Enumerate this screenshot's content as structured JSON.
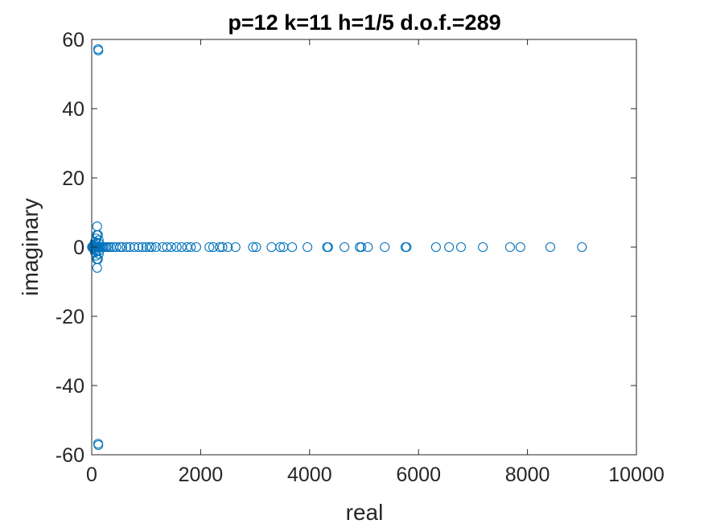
{
  "chart_data": {
    "type": "scatter",
    "title": "p=12 k=11 h=1/5 d.o.f.=289",
    "xlabel": "real",
    "ylabel": "imaginary",
    "xlim": [
      0,
      10000
    ],
    "ylim": [
      -60,
      60
    ],
    "xticks": [
      0,
      2000,
      4000,
      6000,
      8000,
      10000
    ],
    "yticks": [
      -60,
      -40,
      -20,
      0,
      20,
      40,
      60
    ],
    "xtick_labels": [
      "0",
      "2000",
      "4000",
      "6000",
      "8000",
      "10000"
    ],
    "ytick_labels": [
      "-60",
      "-40",
      "-20",
      "0",
      "20",
      "40",
      "60"
    ],
    "grid": false,
    "box": true,
    "marker": "circle-open",
    "series": [
      {
        "color": "#0072BD",
        "points": [
          [
            118,
            57.2
          ],
          [
            122,
            56.8
          ],
          [
            118,
            -56.8
          ],
          [
            122,
            -57.2
          ],
          [
            100,
            6
          ],
          [
            100,
            -6
          ],
          [
            95,
            3.5
          ],
          [
            95,
            -3.5
          ],
          [
            115,
            3.5
          ],
          [
            115,
            -3.5
          ],
          [
            80,
            2.5
          ],
          [
            80,
            -2.5
          ],
          [
            60,
            1.5
          ],
          [
            60,
            -1.5
          ],
          [
            130,
            2
          ],
          [
            130,
            -2
          ],
          [
            30,
            0.5
          ],
          [
            30,
            -0.5
          ],
          [
            50,
            0.8
          ],
          [
            50,
            -0.8
          ],
          [
            140,
            1
          ],
          [
            140,
            -1
          ],
          [
            90,
            1.2
          ],
          [
            90,
            -1.2
          ],
          [
            5,
            0
          ],
          [
            12,
            0
          ],
          [
            20,
            0
          ],
          [
            30,
            0
          ],
          [
            40,
            0
          ],
          [
            55,
            0
          ],
          [
            70,
            0
          ],
          [
            85,
            0
          ],
          [
            100,
            0
          ],
          [
            120,
            0
          ],
          [
            140,
            0
          ],
          [
            160,
            0
          ],
          [
            185,
            0
          ],
          [
            210,
            0
          ],
          [
            240,
            0
          ],
          [
            270,
            0
          ],
          [
            310,
            0
          ],
          [
            350,
            0
          ],
          [
            400,
            0
          ],
          [
            450,
            0
          ],
          [
            520,
            0
          ],
          [
            560,
            0
          ],
          [
            640,
            0
          ],
          [
            700,
            0
          ],
          [
            780,
            0
          ],
          [
            860,
            0
          ],
          [
            930,
            0
          ],
          [
            1000,
            0
          ],
          [
            1060,
            0
          ],
          [
            1100,
            0
          ],
          [
            1180,
            0
          ],
          [
            1300,
            0
          ],
          [
            1380,
            0
          ],
          [
            1460,
            0
          ],
          [
            1560,
            0
          ],
          [
            1650,
            0
          ],
          [
            1750,
            0
          ],
          [
            1820,
            0
          ],
          [
            1920,
            0
          ],
          [
            2160,
            0
          ],
          [
            2230,
            0
          ],
          [
            2350,
            0
          ],
          [
            2400,
            0
          ],
          [
            2500,
            0
          ],
          [
            2640,
            0
          ],
          [
            2960,
            0
          ],
          [
            3020,
            0
          ],
          [
            3300,
            0
          ],
          [
            3460,
            0
          ],
          [
            3520,
            0
          ],
          [
            3680,
            0
          ],
          [
            3960,
            0
          ],
          [
            4320,
            0
          ],
          [
            4340,
            0
          ],
          [
            4640,
            0
          ],
          [
            4920,
            0
          ],
          [
            4950,
            0
          ],
          [
            5070,
            0
          ],
          [
            5380,
            0
          ],
          [
            5760,
            0
          ],
          [
            5780,
            0
          ],
          [
            6320,
            0
          ],
          [
            6560,
            0
          ],
          [
            6780,
            0
          ],
          [
            7180,
            0
          ],
          [
            7680,
            0
          ],
          [
            7870,
            0
          ],
          [
            8420,
            0
          ],
          [
            9000,
            0
          ]
        ]
      }
    ]
  }
}
